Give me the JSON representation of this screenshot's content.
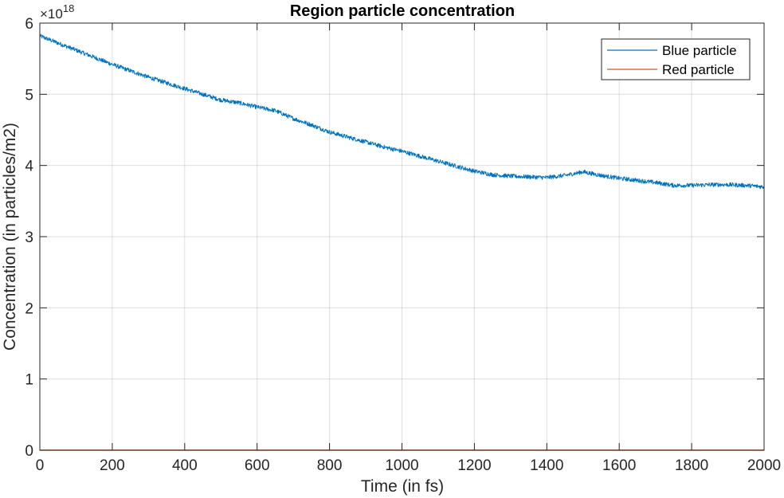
{
  "chart_data": {
    "type": "line",
    "title": "Region particle concentration",
    "xlabel": "Time (in fs)",
    "ylabel": "Concentration (in particles/m2)",
    "xlim": [
      0,
      2000
    ],
    "ylim": [
      0,
      6
    ],
    "x_ticks": [
      "0",
      "200",
      "400",
      "600",
      "800",
      "1000",
      "1200",
      "1400",
      "1600",
      "1800",
      "2000"
    ],
    "y_ticks": [
      "0",
      "1",
      "2",
      "3",
      "4",
      "5",
      "6"
    ],
    "y_multiplier": {
      "base": "×10",
      "exponent": "18"
    },
    "grid": true,
    "legend_position": "top-right",
    "series": [
      {
        "name": "Blue particle",
        "color": "#0072BD",
        "x": [
          0,
          50,
          100,
          150,
          200,
          250,
          300,
          350,
          400,
          450,
          500,
          550,
          600,
          650,
          700,
          750,
          800,
          850,
          900,
          950,
          1000,
          1050,
          1100,
          1150,
          1200,
          1250,
          1300,
          1350,
          1400,
          1450,
          1500,
          1550,
          1600,
          1650,
          1700,
          1750,
          1800,
          1850,
          1900,
          1950,
          2000
        ],
        "y": [
          5.82,
          5.72,
          5.62,
          5.52,
          5.42,
          5.33,
          5.24,
          5.16,
          5.08,
          5.0,
          4.92,
          4.88,
          4.82,
          4.77,
          4.66,
          4.57,
          4.47,
          4.4,
          4.33,
          4.26,
          4.2,
          4.13,
          4.06,
          3.99,
          3.92,
          3.87,
          3.85,
          3.84,
          3.83,
          3.86,
          3.91,
          3.86,
          3.82,
          3.79,
          3.76,
          3.72,
          3.72,
          3.73,
          3.73,
          3.72,
          3.7
        ]
      },
      {
        "name": "Red particle",
        "color": "#D95319",
        "x": [
          0,
          2000
        ],
        "y": [
          0,
          0
        ]
      }
    ]
  }
}
